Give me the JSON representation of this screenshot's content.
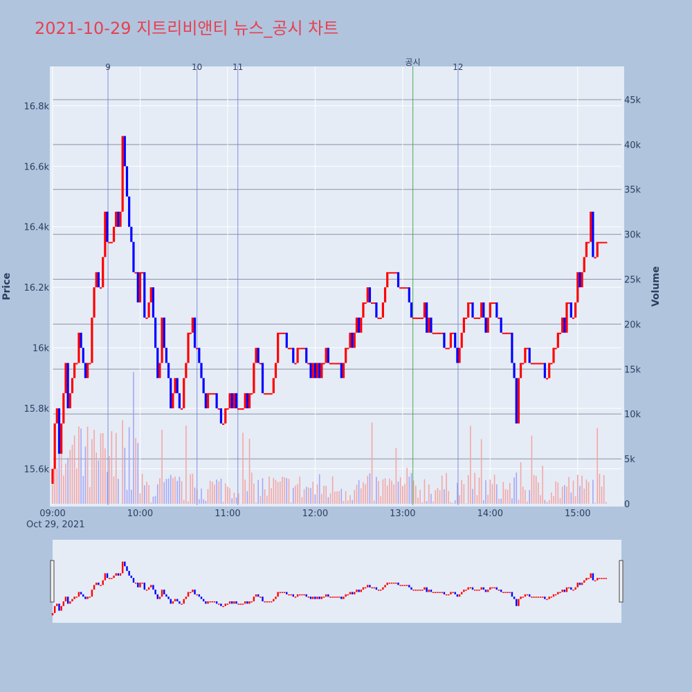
{
  "title": "2021-10-29 지트리비앤티 뉴스_공시 차트",
  "colors": {
    "up": "#ff0000",
    "down": "#0000ff",
    "up_vol": "#f4a6a6",
    "down_vol": "#a6a6f4",
    "marker": "#6e7cd8",
    "disclosure": "#2ca02c",
    "plot_bg": "#e5ecf6",
    "page_bg": "#b0c4de",
    "title": "#e8404f"
  },
  "chart_data": {
    "type": "candlestick",
    "title": "2021-10-29 지트리비앤티 뉴스_공시 차트",
    "xlabel": "",
    "ylabel": "Price",
    "y2label": "Volume",
    "date_label": "Oct 29, 2021",
    "x_range": [
      "09:00",
      "15:30"
    ],
    "ylim": [
      15480,
      16930
    ],
    "y2lim": [
      0,
      47000
    ],
    "x_ticks": [
      "09:00",
      "10:00",
      "11:00",
      "12:00",
      "13:00",
      "14:00",
      "15:00"
    ],
    "y_ticks": [
      15600,
      15800,
      16000,
      16200,
      16400,
      16600,
      16800
    ],
    "y_tick_labels": [
      "15.6k",
      "15.8k",
      "16k",
      "16.2k",
      "16.4k",
      "16.6k",
      "16.8k"
    ],
    "y2_ticks": [
      0,
      5000,
      10000,
      15000,
      20000,
      25000,
      30000,
      35000,
      40000,
      45000
    ],
    "y2_tick_labels": [
      "0",
      "5k",
      "10k",
      "15k",
      "20k",
      "25k",
      "30k",
      "35k",
      "40k",
      "45k"
    ],
    "markers": [
      {
        "label": "9",
        "time": "09:38",
        "kind": "news"
      },
      {
        "label": "10",
        "time": "10:39",
        "kind": "news"
      },
      {
        "label": "11",
        "time": "11:07",
        "kind": "news"
      },
      {
        "label": "공시",
        "time": "13:07",
        "kind": "disclosure"
      },
      {
        "label": "12",
        "time": "13:38",
        "kind": "news"
      }
    ],
    "price_path": [
      [
        "09:00",
        15650
      ],
      [
        "09:03",
        15800
      ],
      [
        "09:05",
        15650
      ],
      [
        "09:07",
        15800
      ],
      [
        "09:09",
        15950
      ],
      [
        "09:11",
        15750
      ],
      [
        "09:13",
        15900
      ],
      [
        "09:16",
        15950
      ],
      [
        "09:19",
        16050
      ],
      [
        "09:22",
        15900
      ],
      [
        "09:26",
        16000
      ],
      [
        "09:29",
        16250
      ],
      [
        "09:32",
        16150
      ],
      [
        "09:36",
        16400
      ],
      [
        "09:40",
        16300
      ],
      [
        "09:43",
        16450
      ],
      [
        "09:46",
        16350
      ],
      [
        "09:48",
        16700
      ],
      [
        "09:50",
        16600
      ],
      [
        "09:52",
        16450
      ],
      [
        "09:55",
        16300
      ],
      [
        "09:58",
        16150
      ],
      [
        "10:01",
        16250
      ],
      [
        "10:04",
        16100
      ],
      [
        "10:07",
        16200
      ],
      [
        "10:10",
        16050
      ],
      [
        "10:12",
        15900
      ],
      [
        "10:15",
        16100
      ],
      [
        "10:18",
        15950
      ],
      [
        "10:21",
        15800
      ],
      [
        "10:24",
        15900
      ],
      [
        "10:28",
        15800
      ],
      [
        "10:31",
        15950
      ],
      [
        "10:35",
        16100
      ],
      [
        "10:38",
        16000
      ],
      [
        "10:42",
        15900
      ],
      [
        "10:45",
        15800
      ],
      [
        "10:50",
        15850
      ],
      [
        "10:55",
        15750
      ],
      [
        "11:00",
        15800
      ],
      [
        "11:05",
        15850
      ],
      [
        "11:10",
        15800
      ],
      [
        "11:15",
        15850
      ],
      [
        "11:20",
        16000
      ],
      [
        "11:25",
        15800
      ],
      [
        "11:30",
        15850
      ],
      [
        "11:35",
        16100
      ],
      [
        "11:40",
        16050
      ],
      [
        "11:45",
        15950
      ],
      [
        "11:50",
        16000
      ],
      [
        "11:55",
        15950
      ],
      [
        "12:00",
        15900
      ],
      [
        "12:05",
        15950
      ],
      [
        "12:10",
        15950
      ],
      [
        "12:15",
        15950
      ],
      [
        "12:20",
        15950
      ],
      [
        "12:25",
        16050
      ],
      [
        "12:30",
        16050
      ],
      [
        "12:35",
        16200
      ],
      [
        "12:40",
        16100
      ],
      [
        "12:45",
        16100
      ],
      [
        "12:50",
        16250
      ],
      [
        "12:55",
        16250
      ],
      [
        "13:00",
        16200
      ],
      [
        "13:05",
        16150
      ],
      [
        "13:10",
        16050
      ],
      [
        "13:15",
        16100
      ],
      [
        "13:20",
        16050
      ],
      [
        "13:25",
        16050
      ],
      [
        "13:30",
        16000
      ],
      [
        "13:35",
        16050
      ],
      [
        "13:38",
        15950
      ],
      [
        "13:42",
        16100
      ],
      [
        "13:46",
        16150
      ],
      [
        "13:50",
        16100
      ],
      [
        "13:54",
        16150
      ],
      [
        "13:58",
        16050
      ],
      [
        "14:00",
        16150
      ],
      [
        "14:04",
        16100
      ],
      [
        "14:08",
        16050
      ],
      [
        "14:12",
        16050
      ],
      [
        "14:16",
        15950
      ],
      [
        "14:18",
        15800
      ],
      [
        "14:20",
        15950
      ],
      [
        "14:25",
        16000
      ],
      [
        "14:30",
        15950
      ],
      [
        "14:35",
        15950
      ],
      [
        "14:40",
        15900
      ],
      [
        "14:45",
        16050
      ],
      [
        "14:50",
        16050
      ],
      [
        "14:55",
        16150
      ],
      [
        "14:58",
        16100
      ],
      [
        "15:00",
        16250
      ],
      [
        "15:03",
        16250
      ],
      [
        "15:06",
        16350
      ],
      [
        "15:09",
        16400
      ],
      [
        "15:12",
        16300
      ],
      [
        "15:16",
        16400
      ],
      [
        "15:20",
        16350
      ]
    ]
  }
}
